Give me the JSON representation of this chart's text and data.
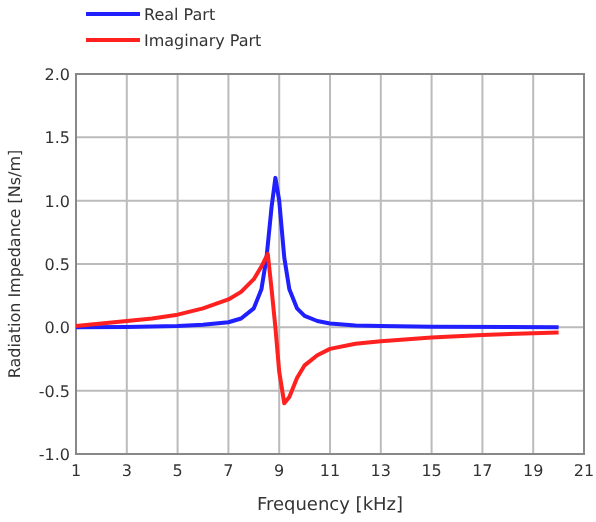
{
  "chart_data": {
    "type": "line",
    "xlabel": "Frequency [kHz]",
    "ylabel": "Radiation Impedance [Ns/m]",
    "xlim": [
      1,
      21
    ],
    "xticks": [
      1,
      3,
      5,
      7,
      9,
      11,
      13,
      15,
      17,
      19,
      21
    ],
    "ylim": [
      -1,
      2
    ],
    "yticks": [
      {
        "value": -1,
        "label": "-1.0"
      },
      {
        "value": -0.5,
        "label": "-0.5"
      },
      {
        "value": 0,
        "label": "0.0"
      },
      {
        "value": 0.5,
        "label": "0.5"
      },
      {
        "value": 1,
        "label": "1.0"
      },
      {
        "value": 1.5,
        "label": "1.5"
      },
      {
        "value": 2,
        "label": "2.0"
      }
    ],
    "grid": true,
    "legend": "top left",
    "marker": "none",
    "line_style": "solid",
    "series": [
      {
        "name": "Real Part",
        "color": "#2020ff",
        "x": [
          1,
          3,
          5,
          6,
          7,
          7.5,
          8,
          8.3,
          8.5,
          8.7,
          8.85,
          9,
          9.2,
          9.4,
          9.7,
          10,
          10.5,
          11,
          12,
          13,
          15,
          20
        ],
        "values": [
          0,
          0.003,
          0.01,
          0.02,
          0.04,
          0.07,
          0.15,
          0.3,
          0.55,
          0.95,
          1.18,
          1,
          0.55,
          0.3,
          0.15,
          0.09,
          0.05,
          0.03,
          0.015,
          0.01,
          0.005,
          0
        ]
      },
      {
        "name": "Imaginary Part",
        "color": "#ff2020",
        "x": [
          1,
          2,
          3,
          4,
          5,
          6,
          7,
          7.5,
          8,
          8.3,
          8.55,
          8.7,
          8.85,
          9,
          9.2,
          9.4,
          9.7,
          10,
          10.5,
          11,
          12,
          13,
          15,
          17,
          20
        ],
        "values": [
          0.01,
          0.03,
          0.05,
          0.07,
          0.1,
          0.15,
          0.22,
          0.28,
          0.38,
          0.48,
          0.58,
          0.3,
          0,
          -0.35,
          -0.6,
          -0.55,
          -0.4,
          -0.3,
          -0.22,
          -0.17,
          -0.13,
          -0.11,
          -0.08,
          -0.06,
          -0.04
        ]
      }
    ]
  }
}
